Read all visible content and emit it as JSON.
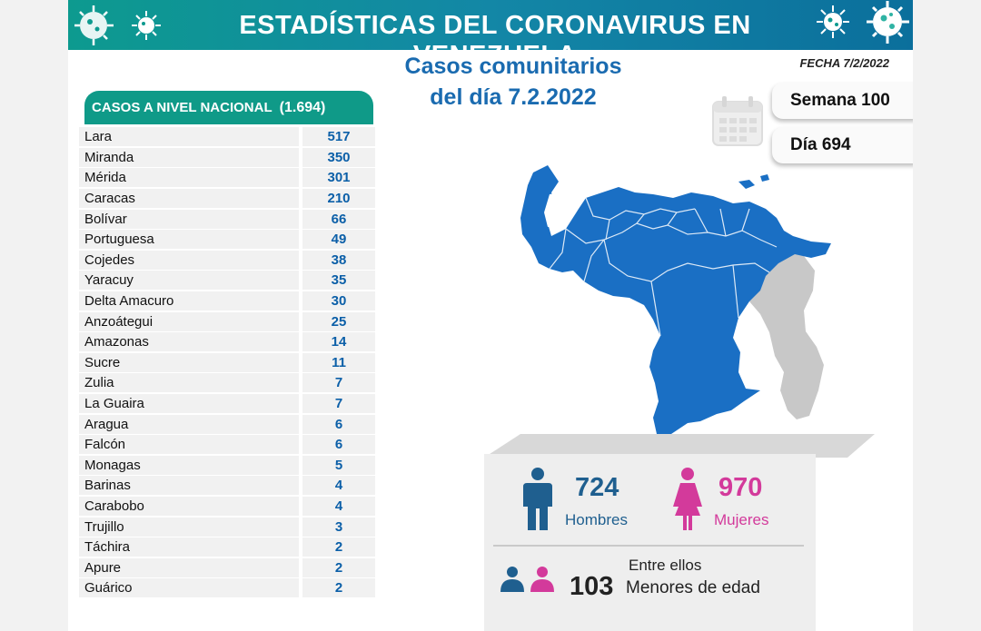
{
  "header": {
    "title": "ESTADÍSTICAS DEL CORONAVIRUS EN VENEZUELA",
    "subtitle_line1": "Casos comunitarios",
    "subtitle_line2": "del día 7.2.2022",
    "fecha": "FECHA 7/2/2022"
  },
  "counters": {
    "semana": "Semana 100",
    "dia": "Día 694"
  },
  "table": {
    "title": "CASOS A NIVEL NACIONAL",
    "total": "(1.694)",
    "rows": [
      {
        "state": "Lara",
        "cases": "517"
      },
      {
        "state": "Miranda",
        "cases": "350"
      },
      {
        "state": "Mérida",
        "cases": "301"
      },
      {
        "state": "Caracas",
        "cases": "210"
      },
      {
        "state": "Bolívar",
        "cases": "66"
      },
      {
        "state": "Portuguesa",
        "cases": "49"
      },
      {
        "state": "Cojedes",
        "cases": "38"
      },
      {
        "state": "Yaracuy",
        "cases": "35"
      },
      {
        "state": "Delta Amacuro",
        "cases": "30"
      },
      {
        "state": "Anzoátegui",
        "cases": "25"
      },
      {
        "state": "Amazonas",
        "cases": "14"
      },
      {
        "state": "Sucre",
        "cases": "11"
      },
      {
        "state": "Zulia",
        "cases": "7"
      },
      {
        "state": "La Guaira",
        "cases": "7"
      },
      {
        "state": "Aragua",
        "cases": "6"
      },
      {
        "state": "Falcón",
        "cases": "6"
      },
      {
        "state": "Monagas",
        "cases": "5"
      },
      {
        "state": "Barinas",
        "cases": "4"
      },
      {
        "state": "Carabobo",
        "cases": "4"
      },
      {
        "state": "Trujillo",
        "cases": "3"
      },
      {
        "state": "Táchira",
        "cases": "2"
      },
      {
        "state": "Apure",
        "cases": "2"
      },
      {
        "state": "Guárico",
        "cases": "2"
      }
    ]
  },
  "stats": {
    "men_count": "724",
    "men_label": "Hombres",
    "women_count": "970",
    "women_label": "Mujeres",
    "minors_intro": "Entre ellos",
    "minors_count": "103",
    "minors_label": "Menores de edad"
  },
  "colors": {
    "banner": "#0f9a88",
    "map_blue": "#1a6fc4",
    "men": "#1f5f8f",
    "women": "#d33a9b"
  }
}
